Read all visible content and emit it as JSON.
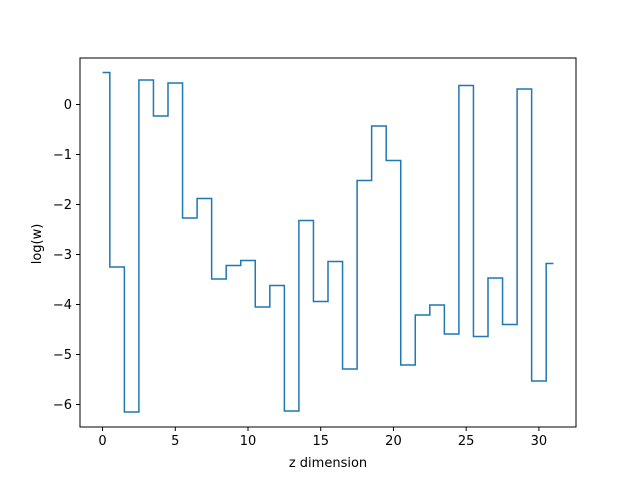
{
  "chart_data": {
    "type": "line",
    "drawstyle": "steps-mid",
    "title": "",
    "xlabel": "z dimension",
    "ylabel": "log(w)",
    "xlim": [
      -1.55,
      32.55
    ],
    "ylim": [
      -6.45,
      0.93
    ],
    "xticks": [
      0,
      5,
      10,
      15,
      20,
      25,
      30
    ],
    "yticks": [
      -6,
      -5,
      -4,
      -3,
      -2,
      -1,
      0
    ],
    "grid": false,
    "series": [
      {
        "color": "#1f77b4",
        "x": [
          0,
          1,
          2,
          3,
          4,
          5,
          6,
          7,
          8,
          9,
          10,
          11,
          12,
          13,
          14,
          15,
          16,
          17,
          18,
          19,
          20,
          21,
          22,
          23,
          24,
          25,
          26,
          27,
          28,
          29,
          30,
          31
        ],
        "y": [
          0.64,
          -3.25,
          -6.15,
          0.49,
          -0.23,
          0.43,
          -2.27,
          -1.88,
          -3.49,
          -3.22,
          -3.12,
          -4.05,
          -3.62,
          -6.13,
          -2.32,
          -3.94,
          -3.14,
          -5.29,
          -1.52,
          -0.43,
          -1.12,
          -5.21,
          -4.21,
          -4.01,
          -4.59,
          0.38,
          -4.64,
          -3.47,
          -4.4,
          0.31,
          -5.53,
          -3.18
        ]
      }
    ]
  }
}
